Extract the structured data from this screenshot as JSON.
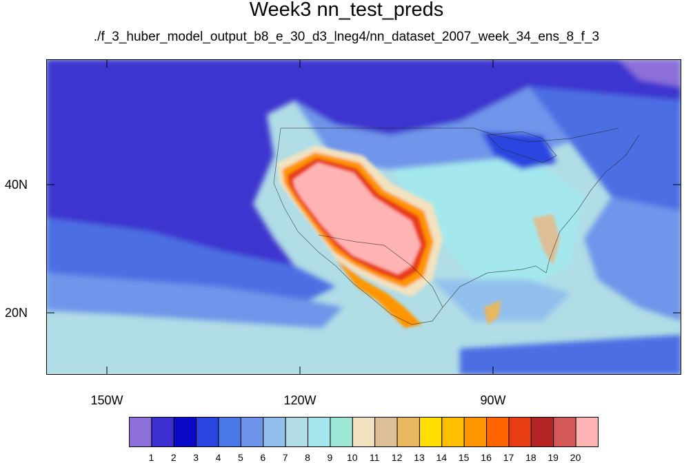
{
  "title": "Week3 nn_test_preds",
  "subtitle": "./f_3_huber_model_output_b8_e_30_d3_lneg4/nn_dataset_2007_week_34_ens_8_f_3",
  "lat_labels": [
    "40N",
    "20N"
  ],
  "lon_labels": [
    "150W",
    "120W",
    "90W"
  ],
  "colorbar": {
    "labels": [
      "1",
      "2",
      "3",
      "4",
      "5",
      "6",
      "7",
      "8",
      "9",
      "10",
      "11",
      "12",
      "13",
      "14",
      "15",
      "16",
      "17",
      "18",
      "19",
      "20"
    ],
    "colors": [
      "#8c6fd8",
      "#3b2fcf",
      "#0a0ac8",
      "#2a44e0",
      "#4a78e8",
      "#6f95ea",
      "#92c0ec",
      "#b0dde6",
      "#a4e8ee",
      "#9ee6d6",
      "#f2e2c0",
      "#dcbf96",
      "#e8b860",
      "#ffde00",
      "#ffbe00",
      "#ff9600",
      "#ff6400",
      "#e83c14",
      "#b42424",
      "#d45858",
      "#ffb4b4"
    ]
  },
  "field_colors": {
    "ocean_deep": "#3d36cf",
    "ocean_mid": "#4b6ee3",
    "ocean_light": "#6f95ea",
    "tropics": "#b0dde6",
    "land_cool": "#a4e8ee",
    "desert_core": "#ffb4b4"
  }
}
